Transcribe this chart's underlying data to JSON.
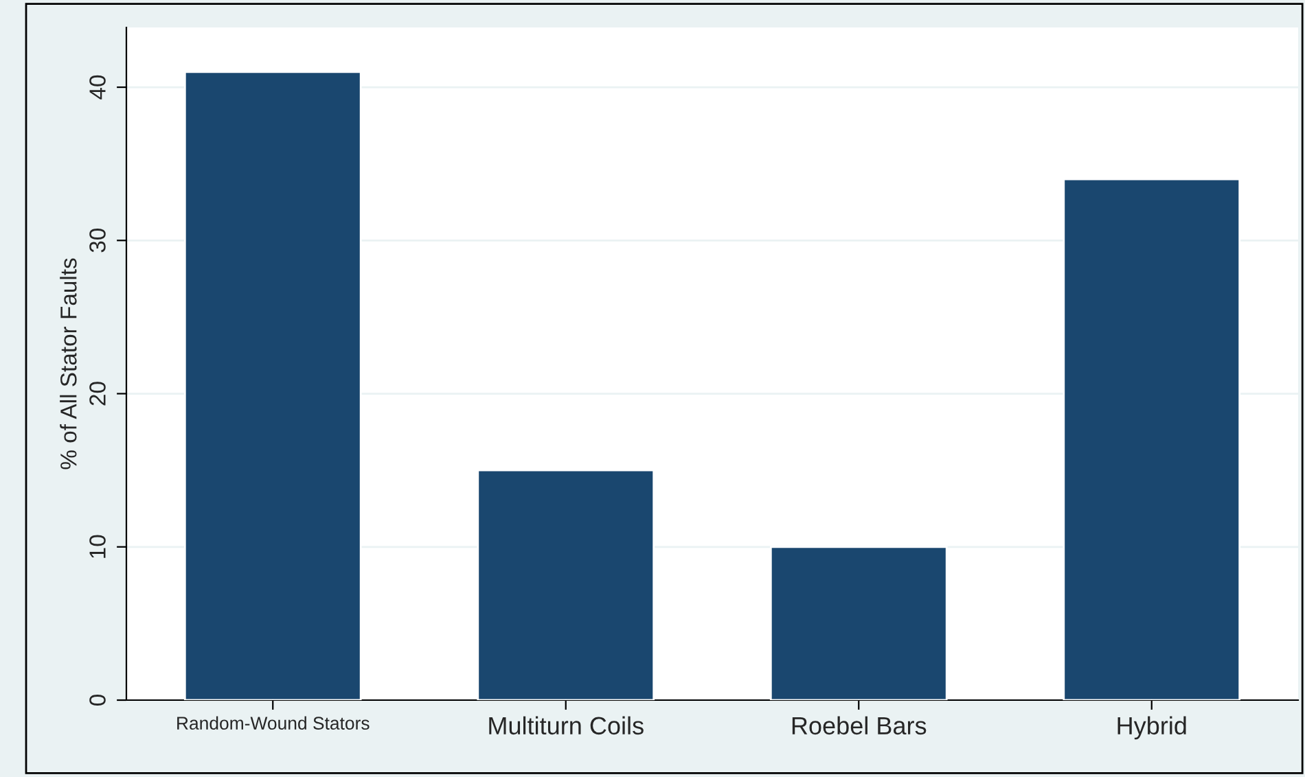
{
  "chart_data": {
    "type": "bar",
    "ylabel": "% of All Stator Faults",
    "categories": [
      "Random-Wound Stators",
      "Multiturn Coils",
      "Roebel Bars",
      "Hybrid"
    ],
    "values": [
      41,
      15,
      10,
      34
    ],
    "color": "#1a476f",
    "ylim": [
      0,
      43.9
    ],
    "yticks": [
      0,
      10,
      20,
      30,
      40
    ],
    "grid": "y",
    "legend": false
  }
}
